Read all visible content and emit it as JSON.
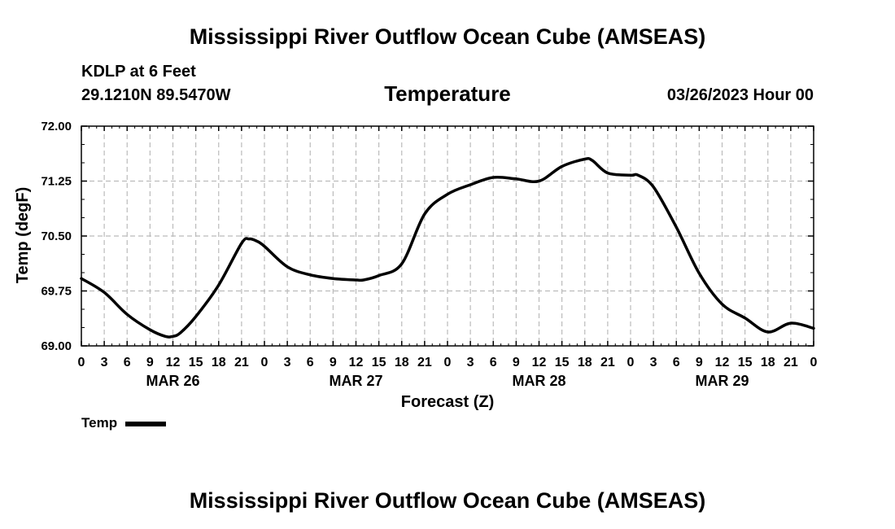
{
  "header": {
    "title": "Mississippi River Outflow Ocean Cube (AMSEAS)",
    "station": "KDLP at 6 Feet",
    "coords": "29.1210N  89.5470W",
    "variable": "Temperature",
    "datetime": "03/26/2023 Hour 00"
  },
  "footer": {
    "title": "Mississippi River Outflow Ocean Cube (AMSEAS)"
  },
  "legend": {
    "label": "Temp"
  },
  "colors": {
    "line": "#000000",
    "grid": "#bbbbbb",
    "background": "#ffffff"
  },
  "chart_data": {
    "type": "line",
    "title": "Temperature",
    "xlabel": "Forecast (Z)",
    "ylabel": "Temp (degF)",
    "ylim": [
      69.0,
      72.0
    ],
    "yticks": [
      "69.00",
      "69.75",
      "70.50",
      "71.25",
      "72.00"
    ],
    "xlim": [
      0,
      96
    ],
    "xtick_hours": [
      0,
      3,
      6,
      9,
      12,
      15,
      18,
      21,
      24,
      27,
      30,
      33,
      36,
      39,
      42,
      45,
      48,
      51,
      54,
      57,
      60,
      63,
      66,
      69,
      72,
      75,
      78,
      81,
      84,
      87,
      90,
      93,
      96
    ],
    "xtick_labels": [
      "0",
      "3",
      "6",
      "9",
      "12",
      "15",
      "18",
      "21",
      "0",
      "3",
      "6",
      "9",
      "12",
      "15",
      "18",
      "21",
      "0",
      "3",
      "6",
      "9",
      "12",
      "15",
      "18",
      "21",
      "0",
      "3",
      "6",
      "9",
      "12",
      "15",
      "18",
      "21",
      "0"
    ],
    "day_labels": [
      {
        "hour": 12,
        "label": "MAR 26"
      },
      {
        "hour": 36,
        "label": "MAR 27"
      },
      {
        "hour": 60,
        "label": "MAR 28"
      },
      {
        "hour": 84,
        "label": "MAR 29"
      }
    ],
    "series": [
      {
        "name": "Temp",
        "x": [
          0,
          3,
          6,
          9,
          11,
          12,
          13,
          15,
          18,
          21,
          22,
          23,
          24,
          27,
          30,
          33,
          36,
          37,
          39,
          42,
          45,
          48,
          51,
          54,
          57,
          60,
          63,
          66,
          67,
          69,
          72,
          73,
          75,
          78,
          81,
          84,
          87,
          90,
          93,
          96
        ],
        "y": [
          69.92,
          69.73,
          69.43,
          69.22,
          69.13,
          69.13,
          69.18,
          69.4,
          69.83,
          70.4,
          70.46,
          70.43,
          70.36,
          70.08,
          69.97,
          69.92,
          69.9,
          69.9,
          69.96,
          70.12,
          70.8,
          71.07,
          71.2,
          71.3,
          71.28,
          71.25,
          71.45,
          71.55,
          71.53,
          71.36,
          71.33,
          71.33,
          71.17,
          70.62,
          69.99,
          69.57,
          69.38,
          69.19,
          69.31,
          69.24
        ]
      }
    ]
  }
}
